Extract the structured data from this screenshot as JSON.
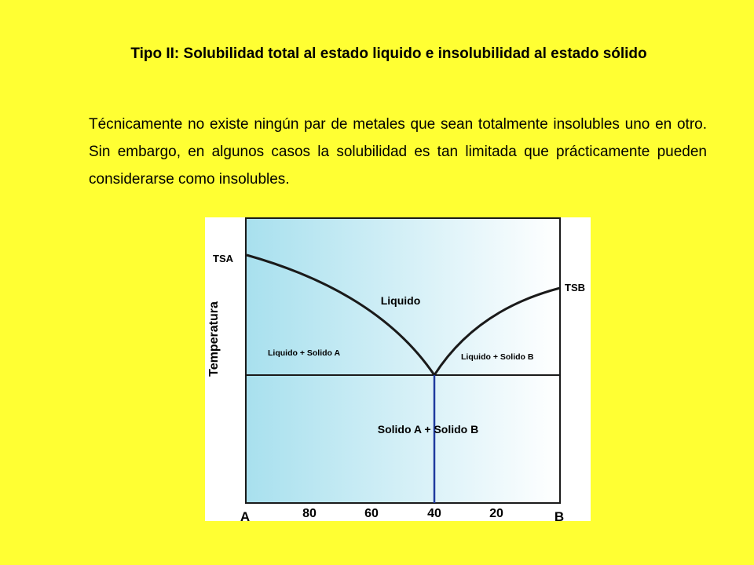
{
  "title": "Tipo II: Solubilidad total al estado liquido e insolubilidad al estado sólido",
  "paragraph": "Técnicamente no existe ningún par de metales que sean totalmente insolubles uno en otro. Sin embargo, en algunos casos la solubilidad es tan limitada que prácticamente pueden considerarse como insolubles.",
  "diagram": {
    "y_axis_label": "Temperatura",
    "tsa_label": "TSA",
    "tsb_label": "TSB",
    "liquid_label": "Liquido",
    "liquid_solid_a_label": "Liquido + Solido A",
    "liquid_solid_b_label": "Liquido + Solido B",
    "solid_label": "Solido A + Solido B",
    "x_left_label": "A",
    "x_right_label": "B",
    "x_ticks": [
      "80",
      "60",
      "40",
      "20"
    ],
    "colors": {
      "page_background": "#ffff33",
      "gradient_start": "#a8e0ee",
      "gradient_end": "#ffffff",
      "curve": "#1a1a1a",
      "eutectic_line": "#1f3a9e"
    }
  }
}
